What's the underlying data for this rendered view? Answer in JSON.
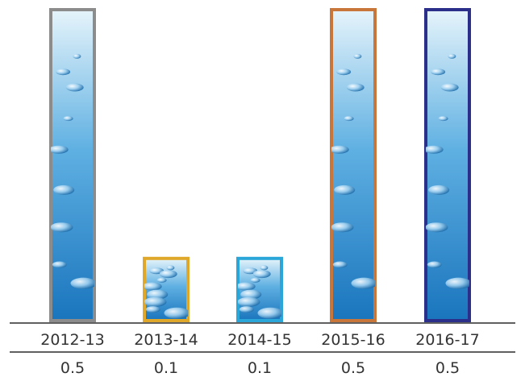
{
  "chart_data": {
    "type": "bar",
    "categories": [
      "2012-13",
      "2013-14",
      "2014-15",
      "2015-16",
      "2016-17"
    ],
    "values": [
      0.5,
      0.1,
      0.1,
      0.5,
      0.5
    ],
    "value_labels": [
      "0.5",
      "0.1",
      "0.1",
      "0.5",
      "0.5"
    ],
    "ylim": [
      0,
      0.5
    ],
    "border_colors": [
      "#8c8c8c",
      "#e0a82b",
      "#2aa7d8",
      "#c8763a",
      "#2b2f8a"
    ],
    "fill_gradient": [
      "#e6f4fb",
      "#5fb0e2",
      "#1a75bd"
    ],
    "grid": false,
    "legend": "none"
  }
}
